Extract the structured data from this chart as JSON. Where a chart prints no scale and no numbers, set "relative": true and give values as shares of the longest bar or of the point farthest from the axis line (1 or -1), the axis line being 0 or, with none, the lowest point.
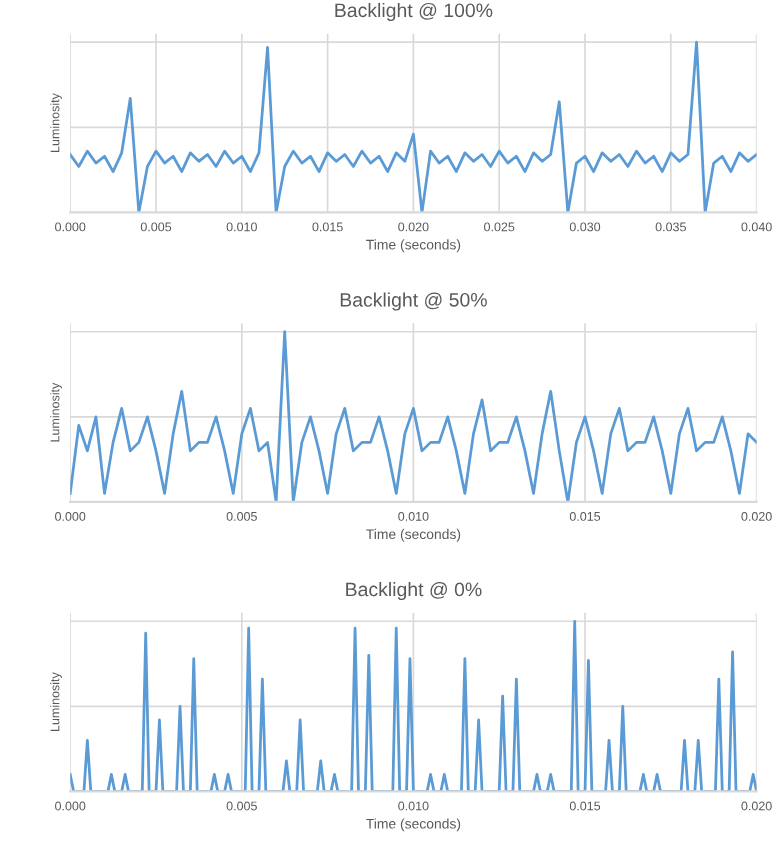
{
  "chart_data": [
    {
      "type": "line",
      "title": "Backlight @ 100%",
      "xlabel": "Time (seconds)",
      "ylabel": "Luminosity",
      "relative": true,
      "tick_labels": "x",
      "grid": true,
      "xlim": [
        0,
        0.04
      ],
      "xticks": [
        {
          "value": 0,
          "label": "0.000"
        },
        {
          "value": 0.005,
          "label": "0.005"
        },
        {
          "value": 0.01,
          "label": "0.010"
        },
        {
          "value": 0.015,
          "label": "0.015"
        },
        {
          "value": 0.02,
          "label": "0.020"
        },
        {
          "value": 0.025,
          "label": "0.025"
        },
        {
          "value": 0.03,
          "label": "0.030"
        },
        {
          "value": 0.035,
          "label": "0.035"
        },
        {
          "value": 0.04,
          "label": "0.040"
        }
      ],
      "series": [
        {
          "color": "#5b9bd5",
          "x": [
            0,
            0.0005,
            0.001,
            0.0015,
            0.002,
            0.0025,
            0.003,
            0.0035,
            0.004,
            0.0045,
            0.005,
            0.0055,
            0.006,
            0.0065,
            0.007,
            0.0075,
            0.008,
            0.0085,
            0.009,
            0.0095,
            0.01,
            0.0105,
            0.011,
            0.0115,
            0.012,
            0.0125,
            0.013,
            0.0135,
            0.014,
            0.0145,
            0.015,
            0.0155,
            0.016,
            0.0165,
            0.017,
            0.0175,
            0.018,
            0.0185,
            0.019,
            0.0195,
            0.02,
            0.0205,
            0.021,
            0.0215,
            0.022,
            0.0225,
            0.023,
            0.0235,
            0.024,
            0.0245,
            0.025,
            0.0255,
            0.026,
            0.0265,
            0.027,
            0.0275,
            0.028,
            0.0285,
            0.029,
            0.0295,
            0.03,
            0.0305,
            0.031,
            0.0315,
            0.032,
            0.0325,
            0.033,
            0.0335,
            0.034,
            0.0345,
            0.035,
            0.0355,
            0.036,
            0.0365,
            0.037,
            0.0375,
            0.038,
            0.0385,
            0.039,
            0.0395,
            0.04
          ],
          "values": [
            0.34,
            0.27,
            0.36,
            0.29,
            0.33,
            0.24,
            0.35,
            0.67,
            0,
            0.27,
            0.36,
            0.29,
            0.33,
            0.24,
            0.35,
            0.3,
            0.34,
            0.27,
            0.36,
            0.29,
            0.33,
            0.24,
            0.35,
            0.97,
            0,
            0.27,
            0.36,
            0.29,
            0.33,
            0.24,
            0.35,
            0.3,
            0.34,
            0.27,
            0.36,
            0.29,
            0.33,
            0.24,
            0.35,
            0.3,
            0.46,
            0,
            0.36,
            0.29,
            0.33,
            0.24,
            0.35,
            0.3,
            0.34,
            0.27,
            0.36,
            0.29,
            0.33,
            0.24,
            0.35,
            0.3,
            0.34,
            0.65,
            0,
            0.29,
            0.33,
            0.24,
            0.35,
            0.3,
            0.34,
            0.27,
            0.36,
            0.29,
            0.33,
            0.24,
            0.35,
            0.3,
            0.34,
            1,
            0,
            0.29,
            0.33,
            0.24,
            0.35,
            0.3,
            0.34
          ]
        }
      ]
    },
    {
      "type": "line",
      "title": "Backlight @ 50%",
      "xlabel": "Time (seconds)",
      "ylabel": "Luminosity",
      "relative": true,
      "tick_labels": "x",
      "grid": true,
      "xlim": [
        0,
        0.02
      ],
      "xticks": [
        {
          "value": 0,
          "label": "0.000"
        },
        {
          "value": 0.005,
          "label": "0.005"
        },
        {
          "value": 0.01,
          "label": "0.010"
        },
        {
          "value": 0.015,
          "label": "0.015"
        },
        {
          "value": 0.02,
          "label": "0.020"
        }
      ],
      "series": [
        {
          "color": "#5b9bd5",
          "x": [
            0,
            0.00025,
            0.0005,
            0.00075,
            0.001,
            0.00125,
            0.0015,
            0.00175,
            0.002,
            0.00225,
            0.0025,
            0.00275,
            0.003,
            0.00325,
            0.0035,
            0.00375,
            0.004,
            0.00425,
            0.0045,
            0.00475,
            0.005,
            0.00525,
            0.0055,
            0.00575,
            0.006,
            0.00625,
            0.0065,
            0.00675,
            0.007,
            0.00725,
            0.0075,
            0.00775,
            0.008,
            0.00825,
            0.0085,
            0.00875,
            0.009,
            0.00925,
            0.0095,
            0.00975,
            0.01,
            0.01025,
            0.0105,
            0.01075,
            0.011,
            0.01125,
            0.0115,
            0.01175,
            0.012,
            0.01225,
            0.0125,
            0.01275,
            0.013,
            0.01325,
            0.0135,
            0.01375,
            0.014,
            0.01425,
            0.0145,
            0.01475,
            0.015,
            0.01525,
            0.0155,
            0.01575,
            0.016,
            0.01625,
            0.0165,
            0.01675,
            0.017,
            0.01725,
            0.0175,
            0.01775,
            0.018,
            0.01825,
            0.0185,
            0.01875,
            0.019,
            0.01925,
            0.0195,
            0.01975,
            0.02
          ],
          "values": [
            0.05,
            0.45,
            0.3,
            0.5,
            0.05,
            0.35,
            0.55,
            0.3,
            0.35,
            0.5,
            0.3,
            0.05,
            0.4,
            0.65,
            0.3,
            0.35,
            0.35,
            0.5,
            0.3,
            0.05,
            0.4,
            0.55,
            0.3,
            0.35,
            0,
            1,
            0,
            0.35,
            0.5,
            0.3,
            0.05,
            0.4,
            0.55,
            0.3,
            0.35,
            0.35,
            0.5,
            0.3,
            0.05,
            0.4,
            0.55,
            0.3,
            0.35,
            0.35,
            0.5,
            0.3,
            0.05,
            0.4,
            0.6,
            0.3,
            0.35,
            0.35,
            0.5,
            0.3,
            0.05,
            0.4,
            0.65,
            0.3,
            0,
            0.35,
            0.5,
            0.3,
            0.05,
            0.4,
            0.55,
            0.3,
            0.35,
            0.35,
            0.5,
            0.3,
            0.05,
            0.4,
            0.55,
            0.3,
            0.35,
            0.35,
            0.5,
            0.3,
            0.05,
            0.4,
            0.35
          ]
        }
      ]
    },
    {
      "type": "line",
      "title": "Backlight @ 0%",
      "xlabel": "Time (seconds)",
      "ylabel": "Luminosity",
      "relative": true,
      "tick_labels": "x",
      "grid": true,
      "xlim": [
        0,
        0.02
      ],
      "xticks": [
        {
          "value": 0,
          "label": "0.000"
        },
        {
          "value": 0.005,
          "label": "0.005"
        },
        {
          "value": 0.01,
          "label": "0.010"
        },
        {
          "value": 0.015,
          "label": "0.015"
        },
        {
          "value": 0.02,
          "label": "0.020"
        }
      ],
      "series": [
        {
          "color": "#5b9bd5",
          "x": [
            0,
            0.0001,
            0.0004,
            0.0005,
            0.0006,
            0.0011,
            0.0012,
            0.0013,
            0.0015,
            0.0016,
            0.0017,
            0.0021,
            0.0022,
            0.0023,
            0.0025,
            0.0026,
            0.0027,
            0.0031,
            0.0032,
            0.0033,
            0.0035,
            0.0036,
            0.0037,
            0.0041,
            0.0042,
            0.0043,
            0.0045,
            0.0046,
            0.0047,
            0.0051,
            0.0052,
            0.0053,
            0.0055,
            0.0056,
            0.0057,
            0.0062,
            0.0063,
            0.0064,
            0.0066,
            0.0067,
            0.0068,
            0.0072,
            0.0073,
            0.0074,
            0.0076,
            0.0077,
            0.0078,
            0.0082,
            0.0083,
            0.0084,
            0.0086,
            0.0087,
            0.0088,
            0.0094,
            0.0095,
            0.0096,
            0.0098,
            0.0099,
            0.01,
            0.0104,
            0.0105,
            0.0106,
            0.0108,
            0.0109,
            0.011,
            0.0114,
            0.0115,
            0.0116,
            0.0118,
            0.0119,
            0.012,
            0.0125,
            0.0126,
            0.0127,
            0.0129,
            0.013,
            0.0131,
            0.0135,
            0.0136,
            0.0137,
            0.0139,
            0.014,
            0.0141,
            0.0146,
            0.0147,
            0.0148,
            0.015,
            0.0151,
            0.0152,
            0.0156,
            0.0157,
            0.0158,
            0.016,
            0.0161,
            0.0162,
            0.0166,
            0.0167,
            0.0168,
            0.017,
            0.0171,
            0.0172,
            0.0178,
            0.0179,
            0.018,
            0.0182,
            0.0183,
            0.0184,
            0.0188,
            0.0189,
            0.019,
            0.0192,
            0.0193,
            0.0194,
            0.0198,
            0.0199,
            0.02
          ],
          "values": [
            0.1,
            0,
            0,
            0.3,
            0,
            0,
            0.1,
            0,
            0,
            0.1,
            0,
            0,
            0.93,
            0,
            0,
            0.42,
            0,
            0,
            0.5,
            0,
            0,
            0.78,
            0,
            0,
            0.1,
            0,
            0,
            0.1,
            0,
            0,
            0.96,
            0,
            0,
            0.66,
            0,
            0,
            0.18,
            0,
            0,
            0.42,
            0,
            0,
            0.18,
            0,
            0,
            0.1,
            0,
            0,
            0.96,
            0,
            0,
            0.8,
            0,
            0,
            0.96,
            0,
            0,
            0.78,
            0,
            0,
            0.1,
            0,
            0,
            0.1,
            0,
            0,
            0.78,
            0,
            0,
            0.42,
            0,
            0,
            0.56,
            0,
            0,
            0.66,
            0,
            0,
            0.1,
            0,
            0,
            0.1,
            0,
            0,
            1,
            0,
            0,
            0.77,
            0,
            0,
            0.3,
            0,
            0,
            0.5,
            0,
            0,
            0.1,
            0,
            0,
            0.1,
            0,
            0,
            0.3,
            0,
            0,
            0.3,
            0,
            0,
            0.66,
            0,
            0,
            0.82,
            0,
            0,
            0.1,
            0
          ]
        }
      ]
    }
  ]
}
